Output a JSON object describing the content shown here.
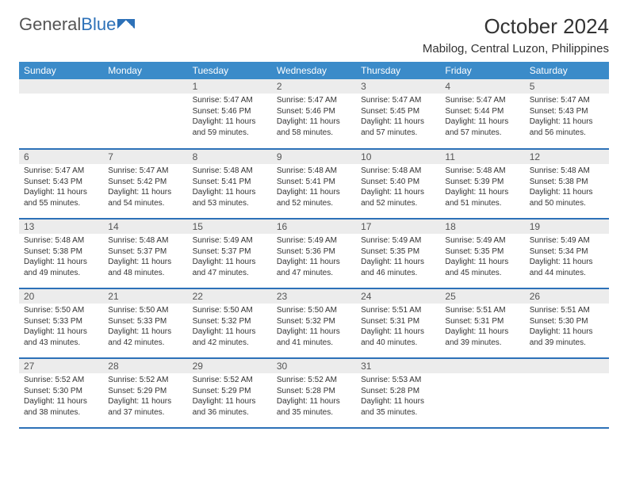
{
  "brand": {
    "part1": "General",
    "part2": "Blue"
  },
  "title": "October 2024",
  "location": "Mabilog, Central Luzon, Philippines",
  "colors": {
    "header_bg": "#3b8bc9",
    "header_fg": "#ffffff",
    "row_border": "#2d71b8",
    "daynum_bg": "#ececec",
    "text": "#333333"
  },
  "typography": {
    "title_fontsize": 26,
    "subtitle_fontsize": 15,
    "day_header_fontsize": 12,
    "body_fontsize": 10
  },
  "day_headers": [
    "Sunday",
    "Monday",
    "Tuesday",
    "Wednesday",
    "Thursday",
    "Friday",
    "Saturday"
  ],
  "leading_blanks": 2,
  "days": [
    {
      "n": 1,
      "sunrise": "5:47 AM",
      "sunset": "5:46 PM",
      "daylight": "11 hours and 59 minutes."
    },
    {
      "n": 2,
      "sunrise": "5:47 AM",
      "sunset": "5:46 PM",
      "daylight": "11 hours and 58 minutes."
    },
    {
      "n": 3,
      "sunrise": "5:47 AM",
      "sunset": "5:45 PM",
      "daylight": "11 hours and 57 minutes."
    },
    {
      "n": 4,
      "sunrise": "5:47 AM",
      "sunset": "5:44 PM",
      "daylight": "11 hours and 57 minutes."
    },
    {
      "n": 5,
      "sunrise": "5:47 AM",
      "sunset": "5:43 PM",
      "daylight": "11 hours and 56 minutes."
    },
    {
      "n": 6,
      "sunrise": "5:47 AM",
      "sunset": "5:43 PM",
      "daylight": "11 hours and 55 minutes."
    },
    {
      "n": 7,
      "sunrise": "5:47 AM",
      "sunset": "5:42 PM",
      "daylight": "11 hours and 54 minutes."
    },
    {
      "n": 8,
      "sunrise": "5:48 AM",
      "sunset": "5:41 PM",
      "daylight": "11 hours and 53 minutes."
    },
    {
      "n": 9,
      "sunrise": "5:48 AM",
      "sunset": "5:41 PM",
      "daylight": "11 hours and 52 minutes."
    },
    {
      "n": 10,
      "sunrise": "5:48 AM",
      "sunset": "5:40 PM",
      "daylight": "11 hours and 52 minutes."
    },
    {
      "n": 11,
      "sunrise": "5:48 AM",
      "sunset": "5:39 PM",
      "daylight": "11 hours and 51 minutes."
    },
    {
      "n": 12,
      "sunrise": "5:48 AM",
      "sunset": "5:38 PM",
      "daylight": "11 hours and 50 minutes."
    },
    {
      "n": 13,
      "sunrise": "5:48 AM",
      "sunset": "5:38 PM",
      "daylight": "11 hours and 49 minutes."
    },
    {
      "n": 14,
      "sunrise": "5:48 AM",
      "sunset": "5:37 PM",
      "daylight": "11 hours and 48 minutes."
    },
    {
      "n": 15,
      "sunrise": "5:49 AM",
      "sunset": "5:37 PM",
      "daylight": "11 hours and 47 minutes."
    },
    {
      "n": 16,
      "sunrise": "5:49 AM",
      "sunset": "5:36 PM",
      "daylight": "11 hours and 47 minutes."
    },
    {
      "n": 17,
      "sunrise": "5:49 AM",
      "sunset": "5:35 PM",
      "daylight": "11 hours and 46 minutes."
    },
    {
      "n": 18,
      "sunrise": "5:49 AM",
      "sunset": "5:35 PM",
      "daylight": "11 hours and 45 minutes."
    },
    {
      "n": 19,
      "sunrise": "5:49 AM",
      "sunset": "5:34 PM",
      "daylight": "11 hours and 44 minutes."
    },
    {
      "n": 20,
      "sunrise": "5:50 AM",
      "sunset": "5:33 PM",
      "daylight": "11 hours and 43 minutes."
    },
    {
      "n": 21,
      "sunrise": "5:50 AM",
      "sunset": "5:33 PM",
      "daylight": "11 hours and 42 minutes."
    },
    {
      "n": 22,
      "sunrise": "5:50 AM",
      "sunset": "5:32 PM",
      "daylight": "11 hours and 42 minutes."
    },
    {
      "n": 23,
      "sunrise": "5:50 AM",
      "sunset": "5:32 PM",
      "daylight": "11 hours and 41 minutes."
    },
    {
      "n": 24,
      "sunrise": "5:51 AM",
      "sunset": "5:31 PM",
      "daylight": "11 hours and 40 minutes."
    },
    {
      "n": 25,
      "sunrise": "5:51 AM",
      "sunset": "5:31 PM",
      "daylight": "11 hours and 39 minutes."
    },
    {
      "n": 26,
      "sunrise": "5:51 AM",
      "sunset": "5:30 PM",
      "daylight": "11 hours and 39 minutes."
    },
    {
      "n": 27,
      "sunrise": "5:52 AM",
      "sunset": "5:30 PM",
      "daylight": "11 hours and 38 minutes."
    },
    {
      "n": 28,
      "sunrise": "5:52 AM",
      "sunset": "5:29 PM",
      "daylight": "11 hours and 37 minutes."
    },
    {
      "n": 29,
      "sunrise": "5:52 AM",
      "sunset": "5:29 PM",
      "daylight": "11 hours and 36 minutes."
    },
    {
      "n": 30,
      "sunrise": "5:52 AM",
      "sunset": "5:28 PM",
      "daylight": "11 hours and 35 minutes."
    },
    {
      "n": 31,
      "sunrise": "5:53 AM",
      "sunset": "5:28 PM",
      "daylight": "11 hours and 35 minutes."
    }
  ],
  "labels": {
    "sunrise_prefix": "Sunrise: ",
    "sunset_prefix": "Sunset: ",
    "daylight_prefix": "Daylight: "
  }
}
